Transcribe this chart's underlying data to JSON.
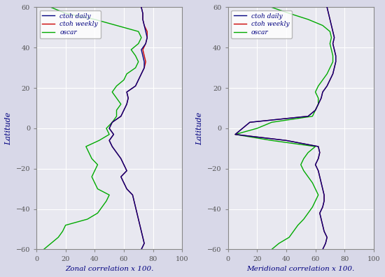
{
  "xlabel_left": "Zonal correlation x 100.",
  "xlabel_right": "Meridional correlation x 100.",
  "ylabel": "Latitude",
  "xlim": [
    0,
    100
  ],
  "ylim": [
    -60,
    60
  ],
  "yticks": [
    -60,
    -40,
    -20,
    0,
    20,
    40,
    60
  ],
  "xticks": [
    0,
    20,
    40,
    60,
    80,
    100
  ],
  "legend_labels": [
    "ctoh daily",
    "ctoh weekly",
    "oscar"
  ],
  "colors": {
    "ctoh_daily": "#000080",
    "ctoh_weekly": "#cc0000",
    "oscar": "#00aa00"
  },
  "bg_color": "#e8e8f0",
  "grid_color": "#ffffff",
  "lat": [
    -60,
    -57,
    -54,
    -51,
    -48,
    -45,
    -42,
    -39,
    -36,
    -33,
    -30,
    -27,
    -24,
    -21,
    -18,
    -15,
    -12,
    -9,
    -6,
    -3,
    0,
    3,
    6,
    9,
    12,
    15,
    18,
    21,
    24,
    27,
    30,
    33,
    36,
    39,
    42,
    45,
    48,
    51,
    54,
    57,
    60
  ],
  "zonal_daily": [
    72,
    74,
    73,
    72,
    71,
    70,
    69,
    68,
    67,
    66,
    62,
    60,
    58,
    62,
    60,
    58,
    55,
    52,
    50,
    53,
    50,
    52,
    58,
    60,
    62,
    63,
    62,
    68,
    70,
    72,
    74,
    74,
    73,
    72,
    75,
    76,
    75,
    74,
    73,
    73,
    72
  ],
  "zonal_weekly": [
    72,
    74,
    73,
    72,
    71,
    70,
    69,
    68,
    67,
    66,
    62,
    60,
    58,
    62,
    60,
    58,
    55,
    52,
    50,
    53,
    50,
    52,
    58,
    60,
    62,
    63,
    62,
    68,
    70,
    72,
    74,
    75,
    74,
    73,
    75,
    76,
    76,
    74,
    73,
    73,
    72
  ],
  "zonal_oscar": [
    5,
    10,
    15,
    18,
    20,
    35,
    42,
    45,
    48,
    50,
    42,
    40,
    38,
    40,
    42,
    38,
    36,
    34,
    43,
    50,
    48,
    52,
    55,
    55,
    58,
    55,
    52,
    55,
    60,
    62,
    68,
    70,
    68,
    65,
    70,
    72,
    70,
    55,
    40,
    20,
    10
  ],
  "merid_daily": [
    65,
    67,
    68,
    66,
    65,
    64,
    63,
    65,
    66,
    66,
    65,
    64,
    63,
    62,
    60,
    62,
    63,
    62,
    40,
    5,
    10,
    15,
    55,
    60,
    62,
    64,
    65,
    68,
    70,
    72,
    73,
    74,
    74,
    73,
    72,
    73,
    72,
    71,
    70,
    69,
    68
  ],
  "merid_weekly": [
    65,
    67,
    68,
    66,
    65,
    64,
    63,
    65,
    66,
    66,
    65,
    64,
    63,
    62,
    60,
    62,
    63,
    62,
    40,
    5,
    10,
    15,
    55,
    60,
    62,
    64,
    65,
    68,
    70,
    72,
    73,
    74,
    74,
    73,
    72,
    73,
    72,
    71,
    70,
    69,
    68
  ],
  "merid_oscar": [
    30,
    35,
    42,
    45,
    48,
    52,
    55,
    58,
    60,
    62,
    60,
    58,
    55,
    52,
    50,
    52,
    55,
    60,
    30,
    5,
    20,
    30,
    58,
    60,
    62,
    62,
    60,
    62,
    65,
    68,
    70,
    72,
    72,
    71,
    70,
    71,
    70,
    65,
    55,
    42,
    30
  ]
}
